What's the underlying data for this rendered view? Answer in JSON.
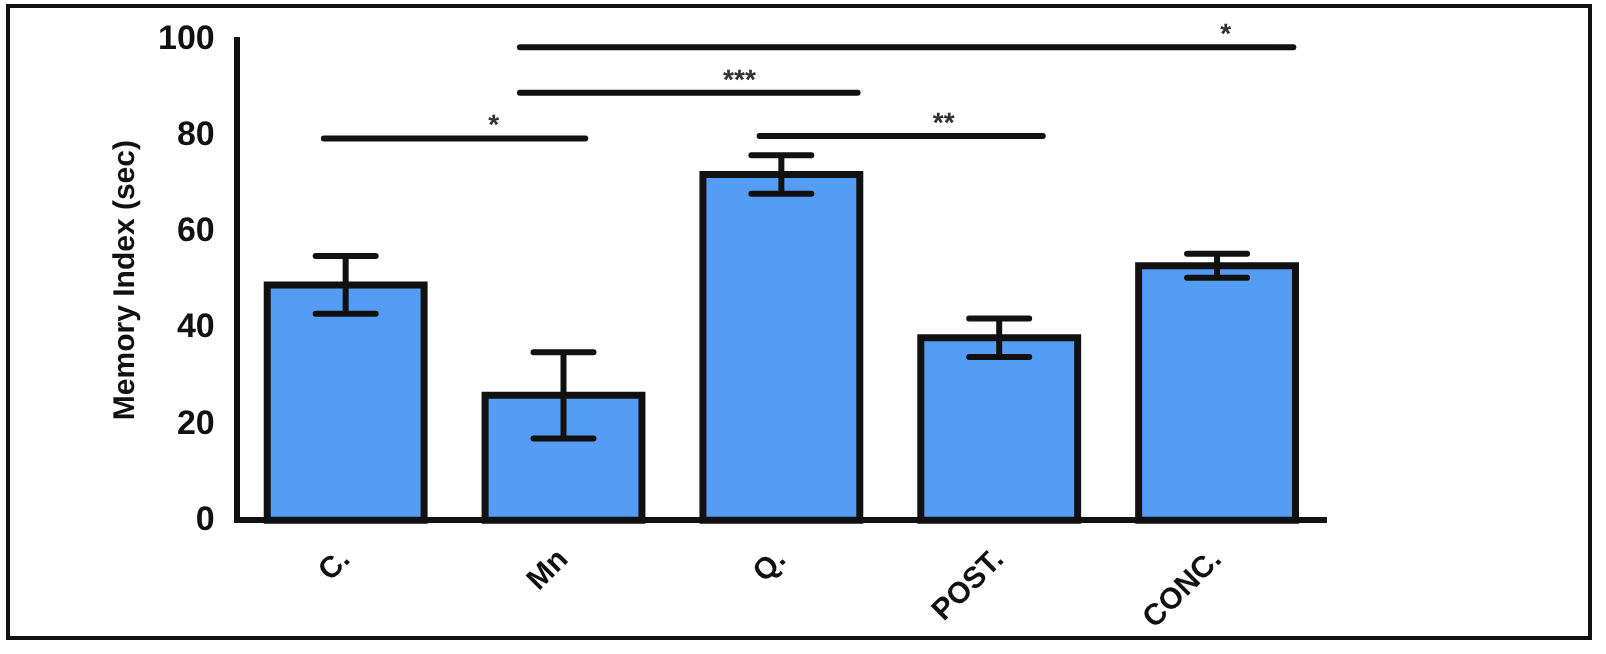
{
  "chart_data": {
    "type": "bar",
    "ylabel": "Memory Index (sec)",
    "categories": [
      "C.",
      "Mn",
      "Q.",
      "POST.",
      "CONC."
    ],
    "values": [
      49,
      26,
      72,
      38,
      53
    ],
    "errors": [
      6,
      9,
      4,
      4,
      2.5
    ],
    "color": "#559cf5",
    "ylim": [
      0,
      100
    ],
    "yticks": [
      0,
      20,
      40,
      60,
      80,
      100
    ],
    "grid": false,
    "legend": false,
    "annotations": [
      "*",
      "***",
      "*",
      "**"
    ]
  }
}
